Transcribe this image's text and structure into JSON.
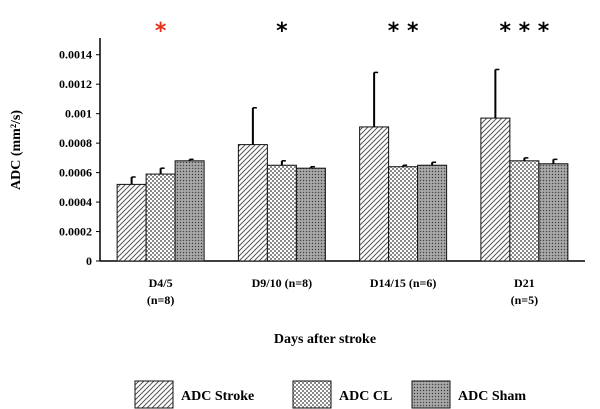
{
  "chart_data": {
    "type": "bar",
    "title": "",
    "xlabel": "Days after stroke",
    "ylabel": "ADC (mm²/s)",
    "ylim": [
      0,
      0.0015
    ],
    "yticks": [
      "0",
      "0.0002",
      "0.0004",
      "0.0006",
      "0.0008",
      "0.001",
      "0.0012",
      "0.0014"
    ],
    "grid": false,
    "legend_position": "bottom",
    "categories": [
      {
        "line1": "D4/5",
        "line2": "(n=8)"
      },
      {
        "line1": "D9/10 (n=8)",
        "line2": ""
      },
      {
        "line1": "D14/15 (n=6)",
        "line2": ""
      },
      {
        "line1": "D21",
        "line2": "(n=5)"
      }
    ],
    "series": [
      {
        "name": "ADC Stroke",
        "pattern": "diagonal",
        "values": [
          0.00052,
          0.00079,
          0.00091,
          0.00097
        ],
        "errors": [
          5e-05,
          0.00025,
          0.00037,
          0.00033
        ]
      },
      {
        "name": "ADC CL",
        "pattern": "checker",
        "values": [
          0.00059,
          0.00065,
          0.00064,
          0.00068
        ],
        "errors": [
          4e-05,
          3e-05,
          1e-05,
          2e-05
        ]
      },
      {
        "name": "ADC Sham",
        "pattern": "dots",
        "values": [
          0.00068,
          0.00063,
          0.00065,
          0.00066
        ],
        "errors": [
          1e-05,
          1e-05,
          2e-05,
          3e-05
        ]
      }
    ],
    "significance": [
      {
        "category": 0,
        "symbols": "*",
        "color": "#e8301c"
      },
      {
        "category": 1,
        "symbols": "*",
        "color": "#000000"
      },
      {
        "category": 2,
        "symbols": "* *",
        "color": "#000000"
      },
      {
        "category": 3,
        "symbols": "* * *",
        "color": "#000000"
      }
    ]
  }
}
